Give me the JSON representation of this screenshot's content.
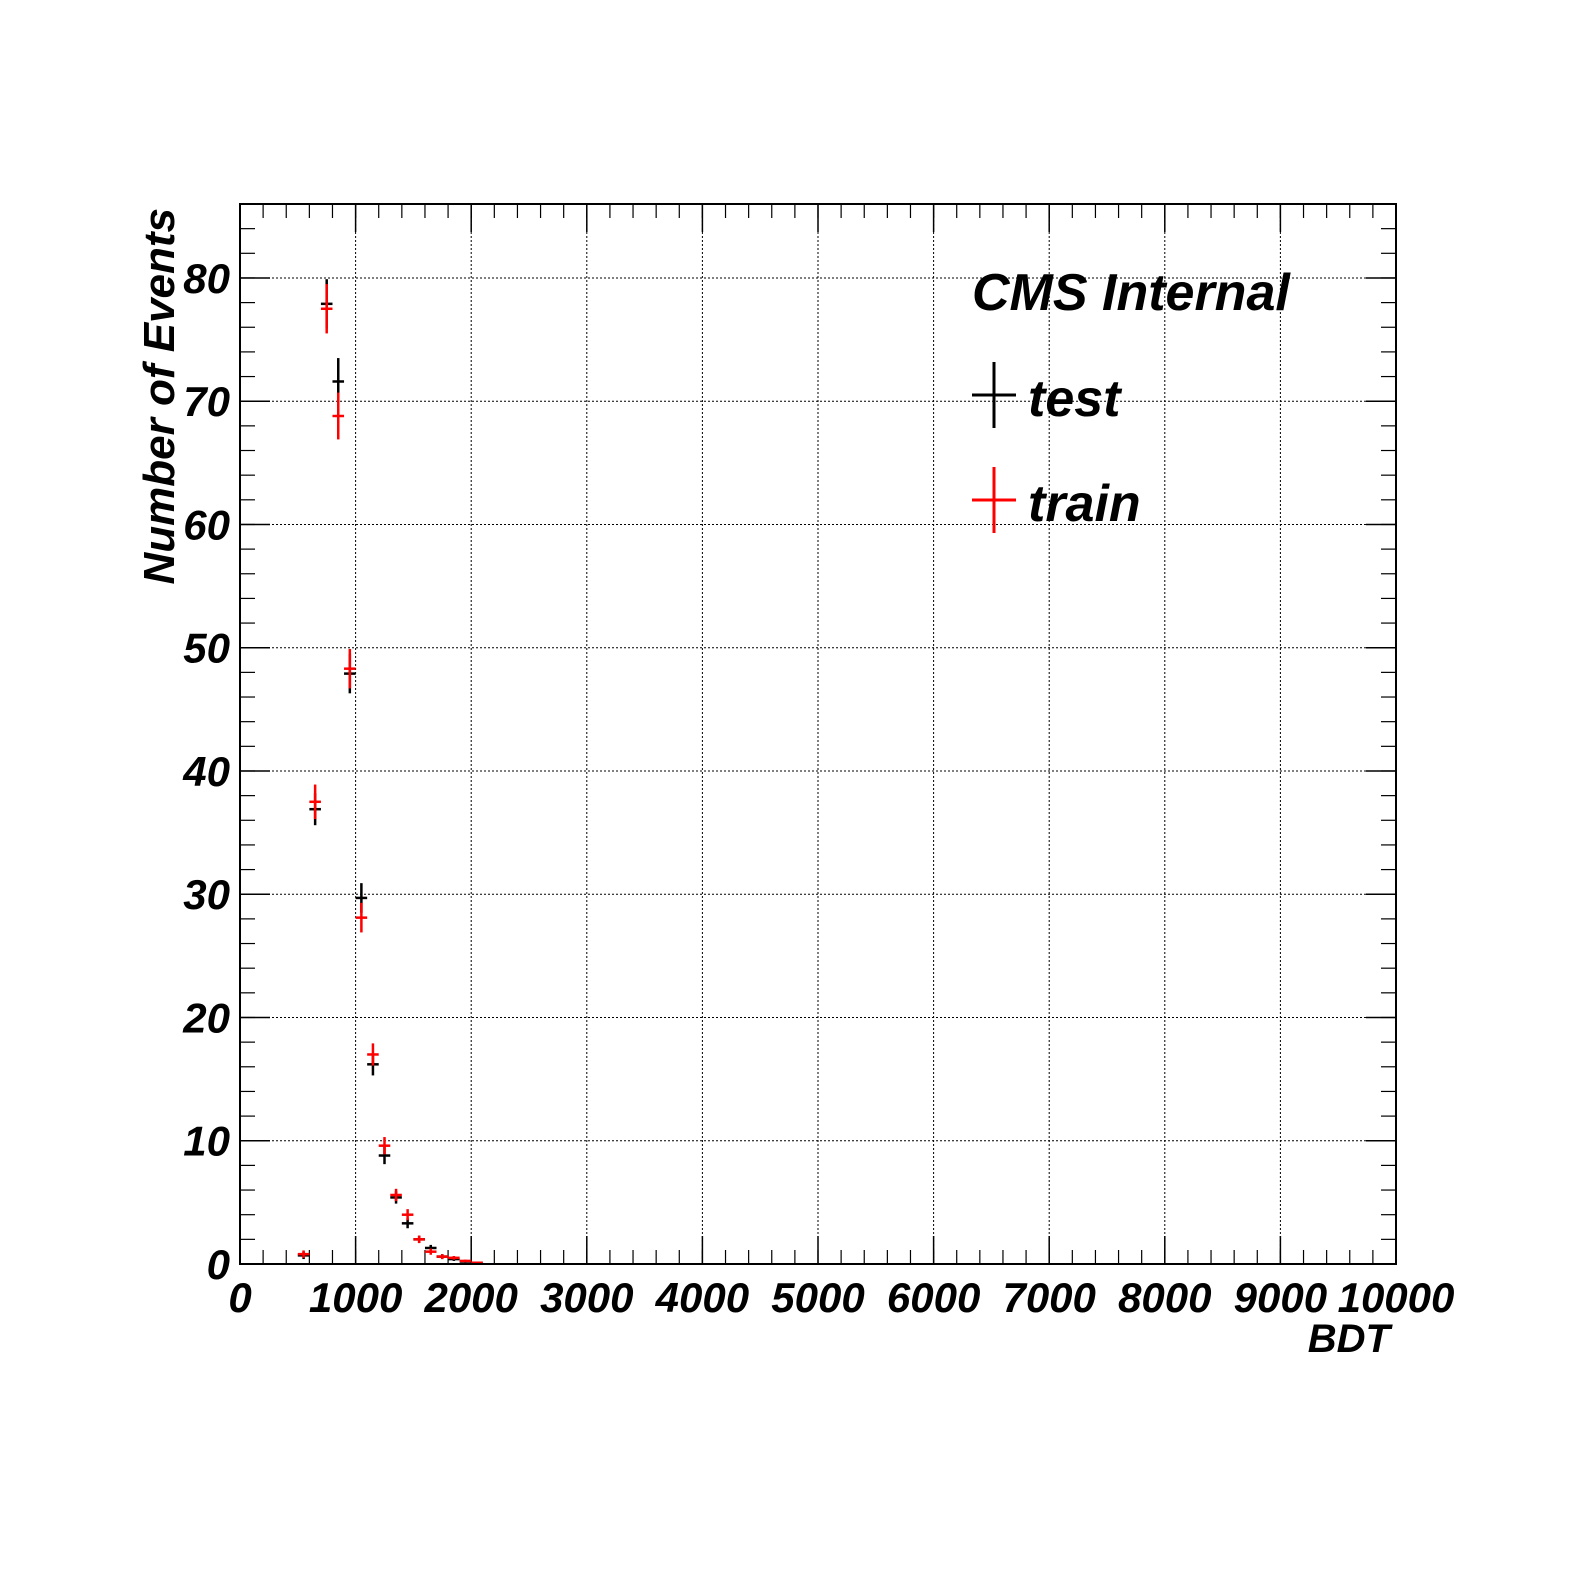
{
  "chart_data": {
    "type": "scatter",
    "xlabel": "BDT",
    "ylabel": "Number of Events",
    "annotation": "CMS Internal",
    "xlim": [
      0,
      10000
    ],
    "ylim": [
      0,
      86
    ],
    "grid": true,
    "legend_position": "top-right",
    "xticks": [
      "0",
      "1000",
      "2000",
      "3000",
      "4000",
      "5000",
      "6000",
      "7000",
      "8000",
      "9000",
      "10000"
    ],
    "yticks": [
      "0",
      "10",
      "20",
      "30",
      "40",
      "50",
      "60",
      "70",
      "80"
    ],
    "bin_width": 100,
    "series": [
      {
        "name": "test",
        "color": "#000000",
        "x": [
          550,
          650,
          750,
          850,
          950,
          1050,
          1150,
          1250,
          1350,
          1450,
          1550,
          1650,
          1750,
          1850,
          1950,
          2050
        ],
        "y": [
          0.7,
          36.9,
          77.9,
          71.6,
          47.9,
          29.7,
          16.2,
          8.8,
          5.4,
          3.3,
          2.0,
          1.3,
          0.6,
          0.4,
          0.2,
          0.1
        ],
        "err": [
          0.3,
          1.3,
          2.0,
          1.9,
          1.6,
          1.2,
          0.9,
          0.7,
          0.5,
          0.4,
          0.3,
          0.25,
          0.2,
          0.15,
          0.1,
          0.05
        ]
      },
      {
        "name": "train",
        "color": "#ff0000",
        "x": [
          550,
          650,
          750,
          850,
          950,
          1050,
          1150,
          1250,
          1350,
          1450,
          1550,
          1650,
          1750,
          1850,
          1950,
          2050
        ],
        "y": [
          0.8,
          37.5,
          77.5,
          68.8,
          48.3,
          28.1,
          17.0,
          9.6,
          5.6,
          4.0,
          2.0,
          1.0,
          0.6,
          0.5,
          0.25,
          0.1
        ],
        "err": [
          0.3,
          1.4,
          2.0,
          1.9,
          1.6,
          1.2,
          0.9,
          0.7,
          0.5,
          0.45,
          0.3,
          0.25,
          0.2,
          0.15,
          0.1,
          0.05
        ]
      }
    ]
  }
}
